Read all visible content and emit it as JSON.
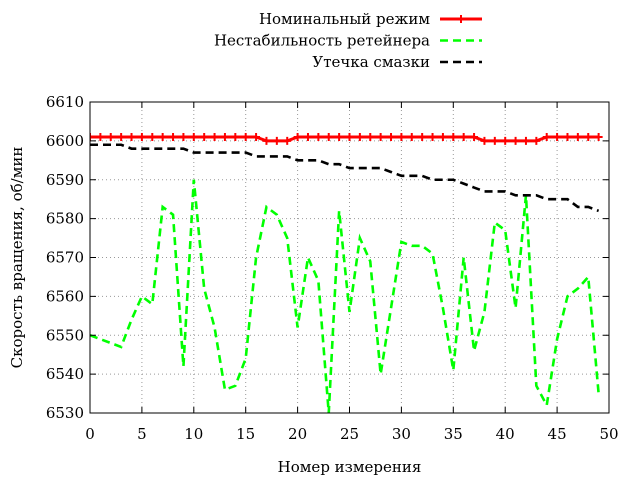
{
  "chart_data": {
    "type": "line",
    "title": "",
    "xlabel": "Номер измерения",
    "ylabel": "Скорость вращения,  об/мин",
    "xlim": [
      0,
      50
    ],
    "ylim": [
      6530,
      6610
    ],
    "xticks": [
      0,
      5,
      10,
      15,
      20,
      25,
      30,
      35,
      40,
      45,
      50
    ],
    "yticks": [
      6530,
      6540,
      6550,
      6560,
      6570,
      6580,
      6590,
      6600,
      6610
    ],
    "grid": true,
    "legend_position": "top-right, above plot",
    "series": [
      {
        "name": "Номинальный режим",
        "color": "#ff0000",
        "style": "solid-with-plus-markers",
        "x": [
          0,
          1,
          2,
          3,
          4,
          5,
          6,
          7,
          8,
          9,
          10,
          11,
          12,
          13,
          14,
          15,
          16,
          17,
          18,
          19,
          20,
          21,
          22,
          23,
          24,
          25,
          26,
          27,
          28,
          29,
          30,
          31,
          32,
          33,
          34,
          35,
          36,
          37,
          38,
          39,
          40,
          41,
          42,
          43,
          44,
          45,
          46,
          47,
          48,
          49
        ],
        "y": [
          6601,
          6601,
          6601,
          6601,
          6601,
          6601,
          6601,
          6601,
          6601,
          6601,
          6601,
          6601,
          6601,
          6601,
          6601,
          6601,
          6601,
          6600,
          6600,
          6600,
          6601,
          6601,
          6601,
          6601,
          6601,
          6601,
          6601,
          6601,
          6601,
          6601,
          6601,
          6601,
          6601,
          6601,
          6601,
          6601,
          6601,
          6601,
          6600,
          6600,
          6600,
          6600,
          6600,
          6600,
          6601,
          6601,
          6601,
          6601,
          6601,
          6601
        ]
      },
      {
        "name": "Нестабильность ретейнера",
        "color": "#00ff00",
        "style": "dashed",
        "x": [
          0,
          1,
          2,
          3,
          4,
          5,
          6,
          7,
          8,
          9,
          10,
          11,
          12,
          13,
          14,
          15,
          16,
          17,
          18,
          19,
          20,
          21,
          22,
          23,
          24,
          25,
          26,
          27,
          28,
          29,
          30,
          31,
          32,
          33,
          34,
          35,
          36,
          37,
          38,
          39,
          40,
          41,
          42,
          43,
          44,
          45,
          46,
          47,
          48,
          49
        ],
        "y": [
          6550,
          6549,
          6548,
          6547,
          6554,
          6560,
          6558,
          6583,
          6581,
          6542,
          6590,
          6562,
          6552,
          6536,
          6537,
          6544,
          6570,
          6583,
          6581,
          6575,
          6552,
          6570,
          6564,
          6530,
          6582,
          6556,
          6575,
          6569,
          6540,
          6557,
          6574,
          6573,
          6573,
          6571,
          6557,
          6541,
          6570,
          6546,
          6556,
          6579,
          6577,
          6557,
          6586,
          6537,
          6532,
          6549,
          6560,
          6562,
          6565,
          6535
        ]
      },
      {
        "name": "Утечка смазки",
        "color": "#000000",
        "style": "dashed",
        "x": [
          0,
          1,
          2,
          3,
          4,
          5,
          6,
          7,
          8,
          9,
          10,
          11,
          12,
          13,
          14,
          15,
          16,
          17,
          18,
          19,
          20,
          21,
          22,
          23,
          24,
          25,
          26,
          27,
          28,
          29,
          30,
          31,
          32,
          33,
          34,
          35,
          36,
          37,
          38,
          39,
          40,
          41,
          42,
          43,
          44,
          45,
          46,
          47,
          48,
          49
        ],
        "y": [
          6599,
          6599,
          6599,
          6599,
          6598,
          6598,
          6598,
          6598,
          6598,
          6598,
          6597,
          6597,
          6597,
          6597,
          6597,
          6597,
          6596,
          6596,
          6596,
          6596,
          6595,
          6595,
          6595,
          6594,
          6594,
          6593,
          6593,
          6593,
          6593,
          6592,
          6591,
          6591,
          6591,
          6590,
          6590,
          6590,
          6589,
          6588,
          6587,
          6587,
          6587,
          6586,
          6586,
          6586,
          6585,
          6585,
          6585,
          6583,
          6583,
          6582
        ]
      }
    ]
  }
}
